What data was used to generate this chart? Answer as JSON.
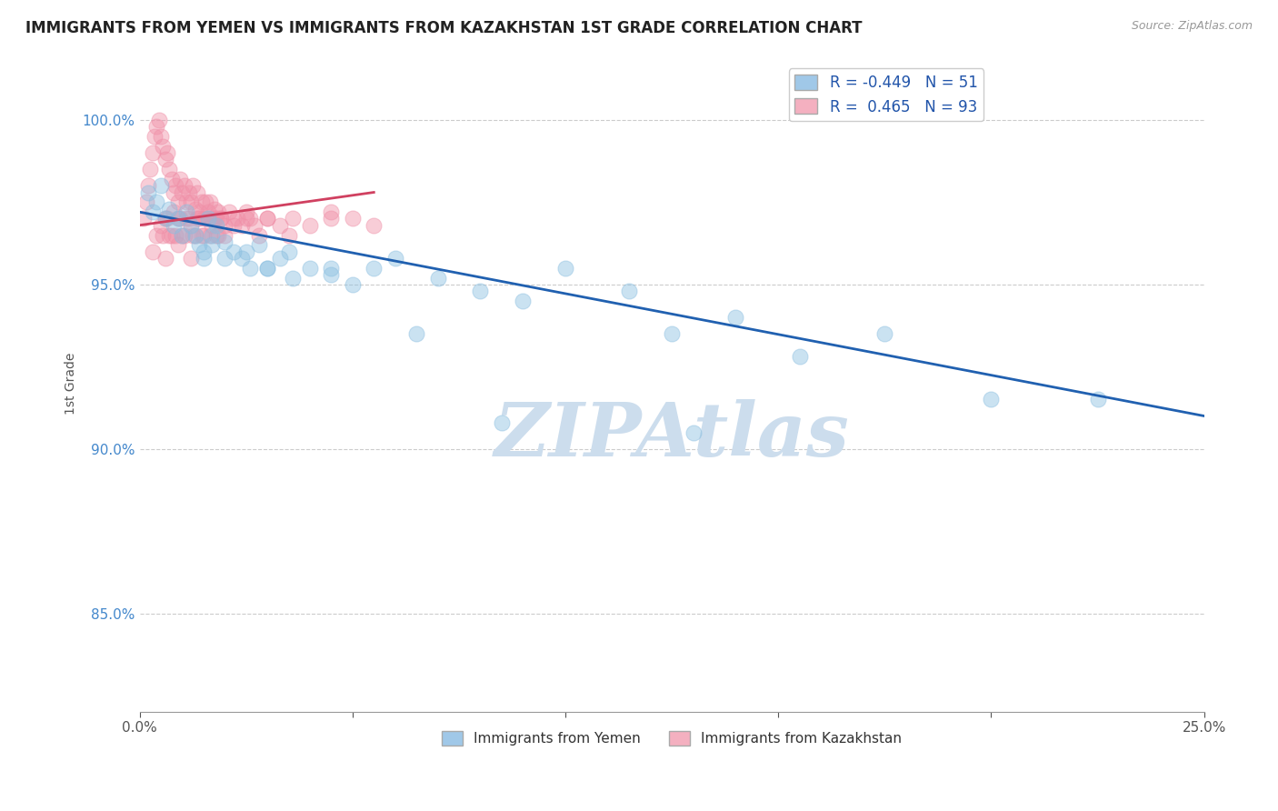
{
  "title": "IMMIGRANTS FROM YEMEN VS IMMIGRANTS FROM KAZAKHSTAN 1ST GRADE CORRELATION CHART",
  "source": "Source: ZipAtlas.com",
  "ylabel": "1st Grade",
  "legend_label1": "Immigrants from Yemen",
  "legend_label2": "Immigrants from Kazakhstan",
  "watermark": "ZIPAtlas",
  "watermark_color": "#ccdded",
  "xlim": [
    0.0,
    25.0
  ],
  "ylim": [
    82.0,
    102.0
  ],
  "y_tick_positions": [
    85.0,
    90.0,
    95.0,
    100.0
  ],
  "y_tick_labels": [
    "85.0%",
    "90.0%",
    "95.0%",
    "100.0%"
  ],
  "blue_scatter_x": [
    0.2,
    0.3,
    0.4,
    0.5,
    0.6,
    0.7,
    0.8,
    0.9,
    1.0,
    1.1,
    1.2,
    1.3,
    1.4,
    1.5,
    1.6,
    1.7,
    1.8,
    2.0,
    2.2,
    2.4,
    2.6,
    2.8,
    3.0,
    3.3,
    3.6,
    4.0,
    4.5,
    5.0,
    5.5,
    6.0,
    7.0,
    8.0,
    9.0,
    10.0,
    11.5,
    12.5,
    14.0,
    15.5,
    17.5,
    20.0,
    22.5,
    1.5,
    1.7,
    2.0,
    2.5,
    3.0,
    3.5,
    4.5,
    6.5,
    8.5,
    13.0
  ],
  "blue_scatter_y": [
    97.8,
    97.2,
    97.5,
    98.0,
    97.0,
    97.3,
    96.8,
    97.0,
    96.5,
    97.2,
    96.8,
    96.5,
    96.2,
    96.0,
    97.0,
    96.5,
    96.8,
    96.3,
    96.0,
    95.8,
    95.5,
    96.2,
    95.5,
    95.8,
    95.2,
    95.5,
    95.3,
    95.0,
    95.5,
    95.8,
    95.2,
    94.8,
    94.5,
    95.5,
    94.8,
    93.5,
    94.0,
    92.8,
    93.5,
    91.5,
    91.5,
    95.8,
    96.2,
    95.8,
    96.0,
    95.5,
    96.0,
    95.5,
    93.5,
    90.8,
    90.5
  ],
  "pink_scatter_x": [
    0.1,
    0.15,
    0.2,
    0.25,
    0.3,
    0.35,
    0.4,
    0.45,
    0.5,
    0.55,
    0.6,
    0.65,
    0.7,
    0.75,
    0.8,
    0.85,
    0.9,
    0.95,
    1.0,
    1.05,
    1.1,
    1.15,
    1.2,
    1.25,
    1.3,
    1.35,
    1.4,
    1.45,
    1.5,
    1.55,
    1.6,
    1.65,
    1.7,
    1.75,
    1.8,
    1.85,
    1.9,
    2.0,
    2.1,
    2.2,
    2.3,
    2.5,
    2.7,
    3.0,
    3.3,
    3.6,
    4.0,
    4.5,
    5.0,
    5.5,
    0.5,
    0.6,
    0.7,
    0.8,
    0.9,
    1.0,
    1.1,
    1.2,
    1.3,
    1.4,
    1.5,
    1.6,
    1.7,
    1.8,
    1.9,
    2.0,
    2.2,
    2.4,
    2.6,
    2.8,
    3.0,
    0.4,
    0.55,
    0.65,
    0.75,
    0.85,
    0.95,
    1.05,
    1.15,
    1.25,
    1.35,
    1.45,
    1.55,
    1.65,
    1.75,
    1.85,
    2.5,
    3.5,
    4.5,
    0.3,
    0.6,
    0.9,
    1.2
  ],
  "pink_scatter_y": [
    97.0,
    97.5,
    98.0,
    98.5,
    99.0,
    99.5,
    99.8,
    100.0,
    99.5,
    99.2,
    98.8,
    99.0,
    98.5,
    98.2,
    97.8,
    98.0,
    97.5,
    98.2,
    97.8,
    98.0,
    97.5,
    97.8,
    97.5,
    98.0,
    97.3,
    97.8,
    97.2,
    97.5,
    97.0,
    97.5,
    97.2,
    97.5,
    97.0,
    97.3,
    97.0,
    97.2,
    97.0,
    96.8,
    97.2,
    96.8,
    97.0,
    97.2,
    96.8,
    97.0,
    96.8,
    97.0,
    96.8,
    97.2,
    97.0,
    96.8,
    96.8,
    97.0,
    96.5,
    97.2,
    97.0,
    96.5,
    97.0,
    96.8,
    96.5,
    97.0,
    96.5,
    97.0,
    96.8,
    96.5,
    97.0,
    96.5,
    97.0,
    96.8,
    97.0,
    96.5,
    97.0,
    96.5,
    96.5,
    97.0,
    96.5,
    96.5,
    97.0,
    96.5,
    97.0,
    96.5,
    97.0,
    96.5,
    97.0,
    96.5,
    97.0,
    96.5,
    97.0,
    96.5,
    97.0,
    96.0,
    95.8,
    96.2,
    95.8
  ],
  "blue_line_x": [
    0.0,
    25.0
  ],
  "blue_line_y": [
    97.2,
    91.0
  ],
  "pink_line_x": [
    0.0,
    5.5
  ],
  "pink_line_y": [
    96.8,
    97.8
  ],
  "blue_dot_color": "#8bbfe0",
  "pink_dot_color": "#f090a8",
  "blue_line_color": "#2060b0",
  "pink_line_color": "#d04060",
  "grid_color": "#cccccc",
  "background_color": "#ffffff",
  "legend_blue_color": "#a0c8e8",
  "legend_pink_color": "#f4b0c0"
}
